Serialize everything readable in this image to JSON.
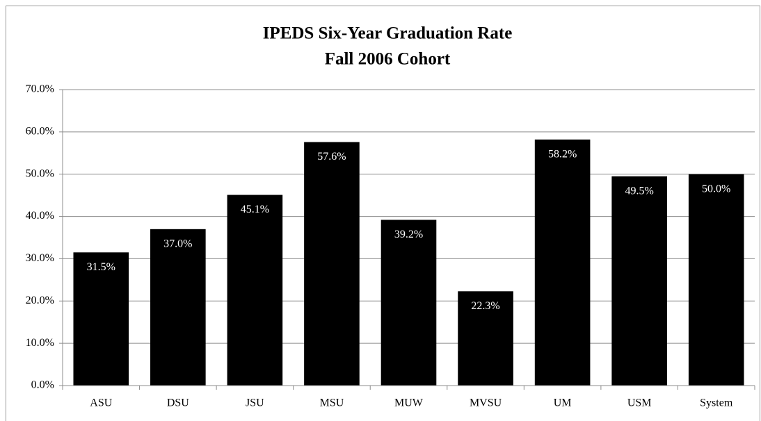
{
  "chart_data": {
    "type": "bar",
    "title": "IPEDS Six-Year Graduation Rate",
    "subtitle": "Fall 2006 Cohort",
    "categories": [
      "ASU",
      "DSU",
      "JSU",
      "MSU",
      "MUW",
      "MVSU",
      "UM",
      "USM",
      "System"
    ],
    "values": [
      31.5,
      37.0,
      45.1,
      57.6,
      39.2,
      22.3,
      58.2,
      49.5,
      50.0
    ],
    "value_labels": [
      "31.5%",
      "37.0%",
      "45.1%",
      "57.6%",
      "39.2%",
      "22.3%",
      "58.2%",
      "49.5%",
      "50.0%"
    ],
    "color": "#000000",
    "ylim": [
      0,
      70
    ],
    "yticks": [
      {
        "value": 0,
        "label": "0.0%"
      },
      {
        "value": 10,
        "label": "10.0%"
      },
      {
        "value": 20,
        "label": "20.0%"
      },
      {
        "value": 30,
        "label": "30.0%"
      },
      {
        "value": 40,
        "label": "40.0%"
      },
      {
        "value": 50,
        "label": "50.0%"
      },
      {
        "value": 60,
        "label": "60.0%"
      },
      {
        "value": 70,
        "label": "70.0%"
      }
    ],
    "grid": true
  }
}
